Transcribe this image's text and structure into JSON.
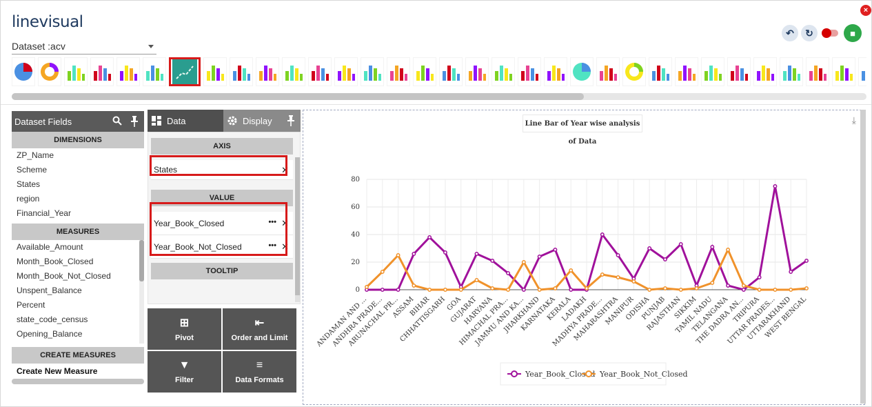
{
  "app": {
    "title": "linevisual",
    "dataset_label": "Dataset :acv"
  },
  "chart_icons": [
    "pie",
    "donut",
    "semi-pie",
    "gauge-arc",
    "bar",
    "bar-grouped",
    "line",
    "area-bar",
    "column",
    "table-grid",
    "stacked-bars",
    "funnel",
    "globe",
    "india-map",
    "india-map-2",
    "funnel-2",
    "bubble",
    "heatmap-columns",
    "word-cloud",
    "image",
    "toggle-chart",
    "pie-2",
    "speedometer",
    "radial",
    "bar-2",
    "candlestick",
    "stacked-bar-2",
    "waterfall",
    "pivot-table",
    "dot-matrix",
    "grid-heatmap",
    "boxplot",
    "sparkline"
  ],
  "fields_panel": {
    "title": "Dataset Fields",
    "dimensions_label": "DIMENSIONS",
    "dimensions": [
      "ZP_Name",
      "Scheme",
      "States",
      "region",
      "Financial_Year"
    ],
    "measures_label": "MEASURES",
    "measures": [
      "Available_Amount",
      "Month_Book_Closed",
      "Month_Book_Not_Closed",
      "Unspent_Balance",
      "Percent",
      "state_code_census",
      "Opening_Balance"
    ],
    "create_measures_label": "CREATE MEASURES",
    "create_new_label": "Create New Measure"
  },
  "config_panel": {
    "tab_data": "Data",
    "tab_display": "Display",
    "axis_label": "AXIS",
    "axis_field": "States",
    "value_label": "VALUE",
    "value_fields": [
      "Year_Book_Closed",
      "Year_Book_Not_Closed"
    ],
    "tooltip_label": "TOOLTIP",
    "actions": [
      {
        "label": "Pivot",
        "icon": "pivot-icon"
      },
      {
        "label": "Order and Limit",
        "icon": "order-limit-icon"
      },
      {
        "label": "Filter",
        "icon": "filter-icon"
      },
      {
        "label": "Data Formats",
        "icon": "data-formats-icon"
      }
    ]
  },
  "chart_data": {
    "type": "line",
    "title": "Line Bar of Year wise analysis of Data",
    "xlabel": "",
    "ylabel": "",
    "ylim": [
      0,
      80
    ],
    "yticks": [
      0,
      20,
      40,
      60,
      80
    ],
    "grid": true,
    "legend_position": "bottom",
    "categories": [
      "ANDAMAN AND ...",
      "ANDHRA PRADE...",
      "ARUNACHAL PR...",
      "ASSAM",
      "BIHAR",
      "CHHATTISGARH",
      "GOA",
      "GUJARAT",
      "HARYANA",
      "HIMACHAL PRA...",
      "JAMMU AND KA...",
      "JHARKHAND",
      "KARNATAKA",
      "KERALA",
      "LADAKH",
      "MADHYA PRADE...",
      "MAHARASHTRA",
      "MANIPUR",
      "ODISHA",
      "PUNJAB",
      "RAJASTHAN",
      "SIKKIM",
      "TAMIL NADU",
      "TELANGANA",
      "THE DADRA AN...",
      "TRIPURA",
      "UTTAR PRADES...",
      "UTTARAKHAND",
      "WEST BENGAL"
    ],
    "series": [
      {
        "name": "Year_Book_Closed",
        "color": "#a0119b",
        "values": [
          0,
          0,
          0,
          26,
          38,
          27,
          2,
          26,
          21,
          12,
          0,
          24,
          29,
          0,
          0,
          40,
          25,
          8,
          30,
          22,
          33,
          3,
          31,
          3,
          0,
          9,
          75,
          13,
          21
        ]
      },
      {
        "name": "Year_Book_Not_Closed",
        "color": "#f0922b",
        "values": [
          2,
          13,
          25,
          3,
          0,
          0,
          0,
          7,
          1,
          0,
          20,
          0,
          1,
          14,
          1,
          11,
          9,
          6,
          0,
          1,
          0,
          1,
          5,
          29,
          3,
          0,
          0,
          0,
          1
        ]
      }
    ]
  }
}
